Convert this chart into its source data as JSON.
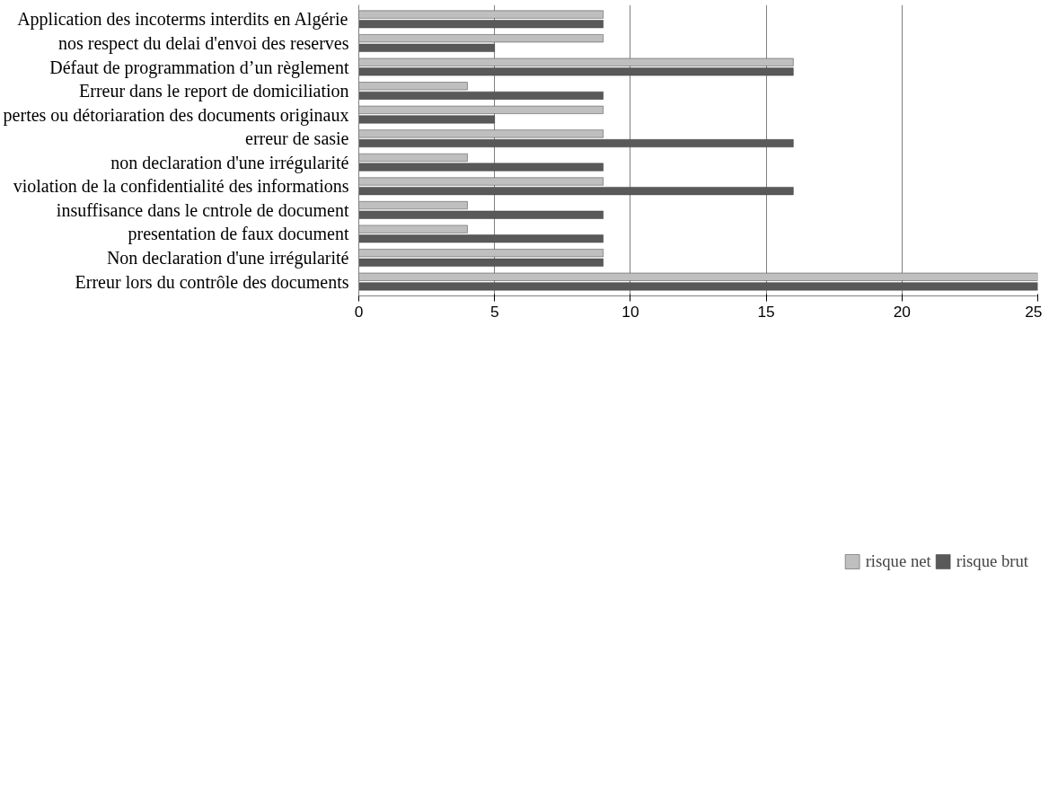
{
  "chart_data": {
    "type": "bar",
    "orientation": "horizontal",
    "categories": [
      "Application des incoterms interdits en Algérie",
      "nos respect du delai d'envoi des reserves",
      "Défaut de programmation d’un règlement",
      "Erreur dans le report de domiciliation",
      "pertes ou détoriaration des documents originaux",
      "erreur de sasie",
      "non declaration d'une irrégularité",
      "violation de la confidentialité des informations",
      "insuffisance dans le cntrole de document",
      "presentation de faux document",
      "Non declaration d'une irrégularité",
      "Erreur lors du contrôle des documents"
    ],
    "series": [
      {
        "name": "risque net",
        "color": "#bfbfbf",
        "values": [
          9,
          9,
          16,
          4,
          9,
          9,
          4,
          9,
          4,
          4,
          9,
          25
        ]
      },
      {
        "name": "risque brut",
        "color": "#595959",
        "values": [
          9,
          5,
          16,
          9,
          5,
          16,
          9,
          16,
          9,
          9,
          9,
          25
        ]
      }
    ],
    "xlim": [
      0,
      25
    ],
    "xticks": [
      0,
      5,
      10,
      15,
      20,
      25
    ],
    "grid": "x",
    "legend": "bottom"
  }
}
